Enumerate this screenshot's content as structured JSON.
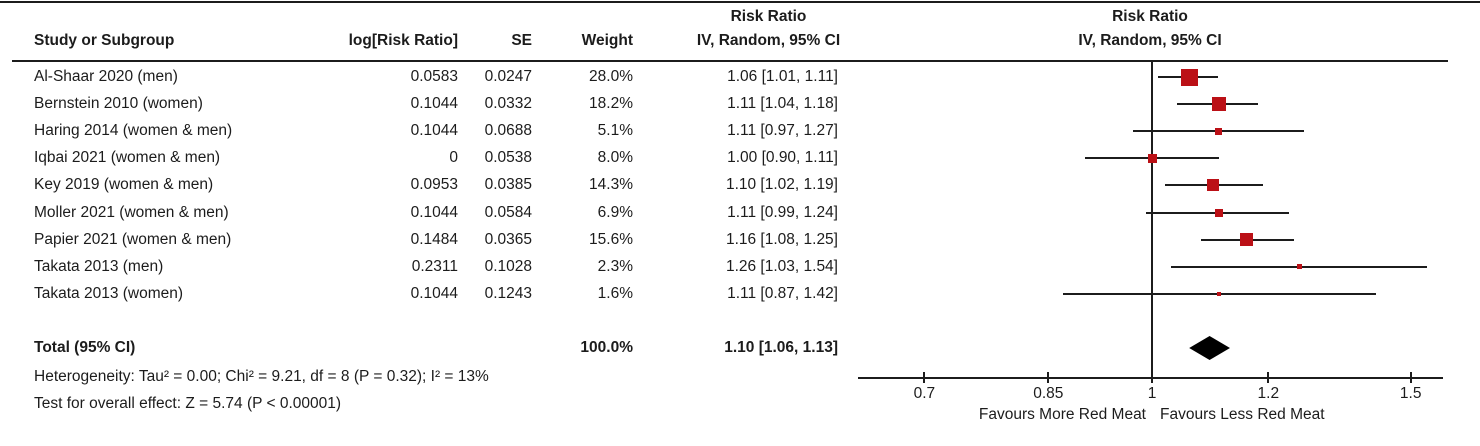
{
  "table": {
    "group_header": "Risk Ratio",
    "columns": {
      "study": "Study or Subgroup",
      "log_rr": "log[Risk Ratio]",
      "se": "SE",
      "weight": "Weight",
      "ci": "IV, Random, 95% CI"
    },
    "studies": [
      {
        "name": "Al-Shaar 2020 (men)",
        "log_rr": "0.0583",
        "se": "0.0247",
        "weight": "28.0%",
        "weight_value": 28.0,
        "rr": 1.06,
        "ci_low": 1.01,
        "ci_high": 1.11,
        "rr_ci_text": "1.06 [1.01, 1.11]"
      },
      {
        "name": "Bernstein 2010 (women)",
        "log_rr": "0.1044",
        "se": "0.0332",
        "weight": "18.2%",
        "weight_value": 18.2,
        "rr": 1.11,
        "ci_low": 1.04,
        "ci_high": 1.18,
        "rr_ci_text": "1.11 [1.04, 1.18]"
      },
      {
        "name": "Haring 2014 (women & men)",
        "log_rr": "0.1044",
        "se": "0.0688",
        "weight": "5.1%",
        "weight_value": 5.1,
        "rr": 1.11,
        "ci_low": 0.97,
        "ci_high": 1.27,
        "rr_ci_text": "1.11 [0.97, 1.27]"
      },
      {
        "name": "Iqbai 2021 (women & men)",
        "log_rr": "0",
        "se": "0.0538",
        "weight": "8.0%",
        "weight_value": 8.0,
        "rr": 1.0,
        "ci_low": 0.9,
        "ci_high": 1.11,
        "rr_ci_text": "1.00 [0.90, 1.11]"
      },
      {
        "name": "Key 2019 (women & men)",
        "log_rr": "0.0953",
        "se": "0.0385",
        "weight": "14.3%",
        "weight_value": 14.3,
        "rr": 1.1,
        "ci_low": 1.02,
        "ci_high": 1.19,
        "rr_ci_text": "1.10 [1.02, 1.19]"
      },
      {
        "name": "Moller 2021 (women & men)",
        "log_rr": "0.1044",
        "se": "0.0584",
        "weight": "6.9%",
        "weight_value": 6.9,
        "rr": 1.11,
        "ci_low": 0.99,
        "ci_high": 1.24,
        "rr_ci_text": "1.11 [0.99, 1.24]"
      },
      {
        "name": "Papier 2021 (women & men)",
        "log_rr": "0.1484",
        "se": "0.0365",
        "weight": "15.6%",
        "weight_value": 15.6,
        "rr": 1.16,
        "ci_low": 1.08,
        "ci_high": 1.25,
        "rr_ci_text": "1.16 [1.08, 1.25]"
      },
      {
        "name": "Takata 2013 (men)",
        "log_rr": "0.2311",
        "se": "0.1028",
        "weight": "2.3%",
        "weight_value": 2.3,
        "rr": 1.26,
        "ci_low": 1.03,
        "ci_high": 1.54,
        "rr_ci_text": "1.26 [1.03, 1.54]"
      },
      {
        "name": "Takata 2013 (women)",
        "log_rr": "0.1044",
        "se": "0.1243",
        "weight": "1.6%",
        "weight_value": 1.6,
        "rr": 1.11,
        "ci_low": 0.87,
        "ci_high": 1.42,
        "rr_ci_text": "1.11 [0.87, 1.42]"
      }
    ],
    "total": {
      "label": "Total (95% CI)",
      "weight": "100.0%",
      "rr": 1.1,
      "ci_low": 1.06,
      "ci_high": 1.13,
      "rr_ci_text": "1.10 [1.06, 1.13]"
    },
    "footnotes": [
      "Heterogeneity: Tau² = 0.00; Chi² = 9.21, df = 8 (P = 0.32); I² = 13%",
      "Test for overall effect: Z = 5.74 (P < 0.00001)"
    ]
  },
  "plot": {
    "header_line1": "Risk Ratio",
    "header_line2": "IV, Random, 95% CI",
    "axis_ticks": [
      "0.7",
      "0.85",
      "1",
      "1.2",
      "1.5"
    ],
    "axis_tick_values": [
      0.7,
      0.85,
      1,
      1.2,
      1.5
    ],
    "null_line_value": 1,
    "favours_left": "Favours More Red Meat",
    "favours_right": "Favours Less Red Meat",
    "marker_color": "#bb1016",
    "diamond_color": "#000000",
    "line_color": "#1c1c1c"
  },
  "chart_data": {
    "type": "forest",
    "title": "Risk Ratio — IV, Random, 95% CI",
    "x_scale": "log",
    "x_ticks": [
      0.7,
      0.85,
      1,
      1.2,
      1.5
    ],
    "xlim": [
      0.63,
      1.58
    ],
    "vertical_reference_line": 1,
    "xlabel_left": "Favours More Red Meat",
    "xlabel_right": "Favours Less Red Meat",
    "legend_position": "none",
    "grid": false,
    "series": [
      {
        "name": "Al-Shaar 2020 (men)",
        "rr": 1.06,
        "ci_low": 1.01,
        "ci_high": 1.11,
        "weight_pct": 28.0,
        "log_rr": 0.0583,
        "se": 0.0247
      },
      {
        "name": "Bernstein 2010 (women)",
        "rr": 1.11,
        "ci_low": 1.04,
        "ci_high": 1.18,
        "weight_pct": 18.2,
        "log_rr": 0.1044,
        "se": 0.0332
      },
      {
        "name": "Haring 2014 (women & men)",
        "rr": 1.11,
        "ci_low": 0.97,
        "ci_high": 1.27,
        "weight_pct": 5.1,
        "log_rr": 0.1044,
        "se": 0.0688
      },
      {
        "name": "Iqbai 2021 (women & men)",
        "rr": 1.0,
        "ci_low": 0.9,
        "ci_high": 1.11,
        "weight_pct": 8.0,
        "log_rr": 0,
        "se": 0.0538
      },
      {
        "name": "Key 2019 (women & men)",
        "rr": 1.1,
        "ci_low": 1.02,
        "ci_high": 1.19,
        "weight_pct": 14.3,
        "log_rr": 0.0953,
        "se": 0.0385
      },
      {
        "name": "Moller 2021 (women & men)",
        "rr": 1.11,
        "ci_low": 0.99,
        "ci_high": 1.24,
        "weight_pct": 6.9,
        "log_rr": 0.1044,
        "se": 0.0584
      },
      {
        "name": "Papier 2021 (women & men)",
        "rr": 1.16,
        "ci_low": 1.08,
        "ci_high": 1.25,
        "weight_pct": 15.6,
        "log_rr": 0.1484,
        "se": 0.0365
      },
      {
        "name": "Takata 2013 (men)",
        "rr": 1.26,
        "ci_low": 1.03,
        "ci_high": 1.54,
        "weight_pct": 2.3,
        "log_rr": 0.2311,
        "se": 0.1028
      },
      {
        "name": "Takata 2013 (women)",
        "rr": 1.11,
        "ci_low": 0.87,
        "ci_high": 1.42,
        "weight_pct": 1.6,
        "log_rr": 0.1044,
        "se": 0.1243
      }
    ],
    "total": {
      "name": "Total (95% CI)",
      "rr": 1.1,
      "ci_low": 1.06,
      "ci_high": 1.13,
      "weight_pct": 100.0
    },
    "heterogeneity": "Heterogeneity: Tau² = 0.00; Chi² = 9.21, df = 8 (P = 0.32); I² = 13%",
    "overall_effect": "Test for overall effect: Z = 5.74 (P < 0.00001)"
  }
}
